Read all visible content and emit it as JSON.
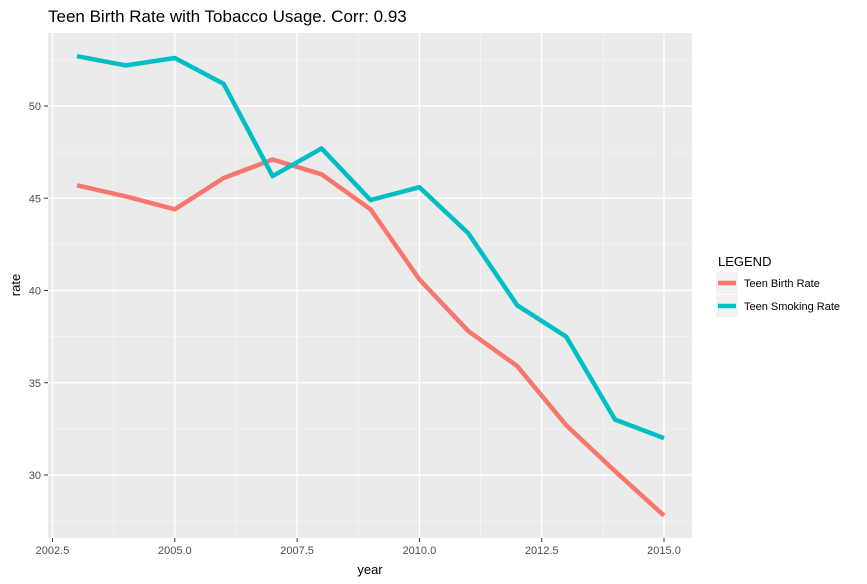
{
  "chart_data": {
    "type": "line",
    "title": "Teen Birth Rate with Tobacco Usage. Corr: 0.93",
    "xlabel": "year",
    "ylabel": "rate",
    "xlim": [
      2002.5,
      2015.0
    ],
    "ylim": [
      28,
      54
    ],
    "xticks": [
      "2002.5",
      "2005.0",
      "2007.5",
      "2010.0",
      "2012.5",
      "2015.0"
    ],
    "yticks": [
      "30",
      "35",
      "40",
      "45",
      "50"
    ],
    "x": [
      2003,
      2004,
      2005,
      2006,
      2007,
      2008,
      2009,
      2010,
      2011,
      2012,
      2013,
      2014,
      2015
    ],
    "series": [
      {
        "name": "Teen Birth Rate",
        "color": "#F8766D",
        "values": [
          45.7,
          45.1,
          44.4,
          46.1,
          47.1,
          46.3,
          44.4,
          40.6,
          37.8,
          35.9,
          32.7,
          30.2,
          27.8
        ]
      },
      {
        "name": "Teen Smoking Rate",
        "color": "#00BFC4",
        "values": [
          52.7,
          52.2,
          52.6,
          51.2,
          46.2,
          47.7,
          44.9,
          45.6,
          43.1,
          39.2,
          37.5,
          33.0,
          32.0
        ]
      }
    ],
    "legend": {
      "title": "LEGEND",
      "position": "right"
    },
    "grid": true
  }
}
